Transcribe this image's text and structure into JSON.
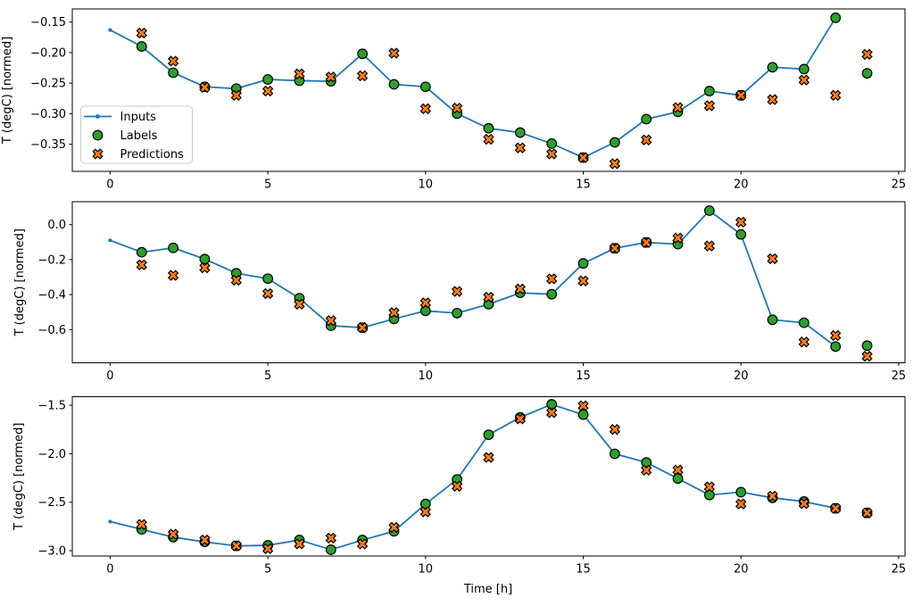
{
  "figure": {
    "xlabel": "Time [h]",
    "ylabel": "T (degC) [normed]",
    "background": "#ffffff",
    "colors": {
      "inputs_line": "#1f77b4",
      "labels_marker": "#2ca02c",
      "predictions_marker": "#ff7f0e",
      "marker_edge": "#000000",
      "axes": "#000000",
      "legend_border": "#cccccc"
    },
    "legend": {
      "entries": [
        {
          "label": "Inputs",
          "marker": "line-with-dot",
          "color": "#1f77b4"
        },
        {
          "label": "Labels",
          "marker": "filled-circle",
          "color": "#2ca02c",
          "edge_color": "#000000"
        },
        {
          "label": "Predictions",
          "marker": "filled-x",
          "color": "#ff7f0e",
          "edge_color": "#000000"
        }
      ]
    }
  },
  "chart_data": [
    {
      "type": "line+scatter",
      "title": "",
      "xlabel": "",
      "ylabel": "T (degC) [normed]",
      "grid": false,
      "legend_visible": true,
      "xlim": [
        -1.2,
        25.2
      ],
      "ylim": [
        -0.3945,
        -0.1285
      ],
      "xtick_values": [
        0,
        5,
        10,
        15,
        20,
        25
      ],
      "xtick_labels": [
        "0",
        "5",
        "10",
        "15",
        "20",
        "25"
      ],
      "ytick_values": [
        -0.15,
        -0.2,
        -0.25,
        -0.3,
        -0.35
      ],
      "ytick_labels": [
        "−0.15",
        "−0.20",
        "−0.25",
        "−0.30",
        "−0.35"
      ],
      "series": [
        {
          "name": "Inputs",
          "type": "line",
          "marker": "dot",
          "color": "#1f77b4",
          "x": [
            0,
            1,
            2,
            3,
            4,
            5,
            6,
            7,
            8,
            9,
            10,
            11,
            12,
            13,
            14,
            15,
            16,
            17,
            18,
            19,
            20,
            21,
            22,
            23
          ],
          "y": [
            -0.163,
            -0.19,
            -0.233,
            -0.256,
            -0.259,
            -0.244,
            -0.246,
            -0.247,
            -0.202,
            -0.252,
            -0.256,
            -0.3,
            -0.324,
            -0.331,
            -0.349,
            -0.372,
            -0.347,
            -0.309,
            -0.297,
            -0.263,
            -0.27,
            -0.224,
            -0.227,
            -0.143
          ]
        },
        {
          "name": "Labels",
          "type": "scatter",
          "marker": "circle",
          "color": "#2ca02c",
          "edge": "#000000",
          "x": [
            1,
            2,
            3,
            4,
            5,
            6,
            7,
            8,
            9,
            10,
            11,
            12,
            13,
            14,
            15,
            16,
            17,
            18,
            19,
            20,
            21,
            22,
            23,
            24
          ],
          "y": [
            -0.19,
            -0.233,
            -0.256,
            -0.259,
            -0.244,
            -0.246,
            -0.247,
            -0.202,
            -0.252,
            -0.256,
            -0.3,
            -0.324,
            -0.331,
            -0.349,
            -0.372,
            -0.347,
            -0.309,
            -0.297,
            -0.263,
            -0.27,
            -0.224,
            -0.227,
            -0.143,
            -0.234
          ]
        },
        {
          "name": "Predictions",
          "type": "scatter",
          "marker": "X",
          "color": "#ff7f0e",
          "edge": "#000000",
          "x": [
            1,
            2,
            3,
            4,
            5,
            6,
            7,
            8,
            9,
            10,
            11,
            12,
            13,
            14,
            15,
            16,
            17,
            18,
            19,
            20,
            21,
            22,
            23,
            24
          ],
          "y": [
            -0.168,
            -0.214,
            -0.257,
            -0.27,
            -0.263,
            -0.235,
            -0.24,
            -0.238,
            -0.201,
            -0.292,
            -0.291,
            -0.342,
            -0.356,
            -0.366,
            -0.372,
            -0.382,
            -0.343,
            -0.29,
            -0.287,
            -0.27,
            -0.277,
            -0.245,
            -0.27,
            -0.203
          ]
        }
      ]
    },
    {
      "type": "line+scatter",
      "title": "",
      "xlabel": "",
      "ylabel": "T (degC) [normed]",
      "grid": false,
      "legend_visible": false,
      "xlim": [
        -1.2,
        25.2
      ],
      "ylim": [
        -0.79,
        0.131
      ],
      "xtick_values": [
        0,
        5,
        10,
        15,
        20,
        25
      ],
      "xtick_labels": [
        "0",
        "5",
        "10",
        "15",
        "20",
        "25"
      ],
      "ytick_values": [
        0.0,
        -0.2,
        -0.4,
        -0.6
      ],
      "ytick_labels": [
        "0.0",
        "−0.2",
        "−0.4",
        "−0.6"
      ],
      "series": [
        {
          "name": "Inputs",
          "type": "line",
          "marker": "dot",
          "color": "#1f77b4",
          "x": [
            0,
            1,
            2,
            3,
            4,
            5,
            6,
            7,
            8,
            9,
            10,
            11,
            12,
            13,
            14,
            15,
            16,
            17,
            18,
            19,
            20,
            21,
            22,
            23
          ],
          "y": [
            -0.09,
            -0.158,
            -0.133,
            -0.197,
            -0.278,
            -0.309,
            -0.421,
            -0.578,
            -0.589,
            -0.539,
            -0.493,
            -0.506,
            -0.455,
            -0.39,
            -0.398,
            -0.222,
            -0.135,
            -0.102,
            -0.112,
            0.08,
            -0.056,
            -0.544,
            -0.561,
            -0.697
          ]
        },
        {
          "name": "Labels",
          "type": "scatter",
          "marker": "circle",
          "color": "#2ca02c",
          "edge": "#000000",
          "x": [
            1,
            2,
            3,
            4,
            5,
            6,
            7,
            8,
            9,
            10,
            11,
            12,
            13,
            14,
            15,
            16,
            17,
            18,
            19,
            20,
            21,
            22,
            23,
            24
          ],
          "y": [
            -0.158,
            -0.133,
            -0.197,
            -0.278,
            -0.309,
            -0.421,
            -0.578,
            -0.589,
            -0.539,
            -0.493,
            -0.506,
            -0.455,
            -0.39,
            -0.398,
            -0.222,
            -0.135,
            -0.102,
            -0.112,
            0.08,
            -0.056,
            -0.544,
            -0.561,
            -0.697,
            -0.692
          ]
        },
        {
          "name": "Predictions",
          "type": "scatter",
          "marker": "X",
          "color": "#ff7f0e",
          "edge": "#000000",
          "x": [
            1,
            2,
            3,
            4,
            5,
            6,
            7,
            8,
            9,
            10,
            11,
            12,
            13,
            14,
            15,
            16,
            17,
            18,
            19,
            20,
            21,
            22,
            23,
            24
          ],
          "y": [
            -0.23,
            -0.29,
            -0.247,
            -0.318,
            -0.394,
            -0.455,
            -0.549,
            -0.589,
            -0.503,
            -0.447,
            -0.382,
            -0.415,
            -0.368,
            -0.31,
            -0.322,
            -0.135,
            -0.102,
            -0.077,
            -0.122,
            0.014,
            -0.195,
            -0.671,
            -0.634,
            -0.753
          ]
        }
      ]
    },
    {
      "type": "line+scatter",
      "title": "",
      "xlabel": "Time [h]",
      "ylabel": "T (degC) [normed]",
      "grid": false,
      "legend_visible": false,
      "xlim": [
        -1.2,
        25.2
      ],
      "ylim": [
        -3.055,
        -1.412
      ],
      "xtick_values": [
        0,
        5,
        10,
        15,
        20,
        25
      ],
      "xtick_labels": [
        "0",
        "5",
        "10",
        "15",
        "20",
        "25"
      ],
      "ytick_values": [
        -1.5,
        -2.0,
        -2.5,
        -3.0
      ],
      "ytick_labels": [
        "−1.5",
        "−2.0",
        "−2.5",
        "−3.0"
      ],
      "series": [
        {
          "name": "Inputs",
          "type": "line",
          "marker": "dot",
          "color": "#1f77b4",
          "x": [
            0,
            1,
            2,
            3,
            4,
            5,
            6,
            7,
            8,
            9,
            10,
            11,
            12,
            13,
            14,
            15,
            16,
            17,
            18,
            19,
            20,
            21,
            22,
            23
          ],
          "y": [
            -2.7,
            -2.78,
            -2.86,
            -2.91,
            -2.95,
            -2.945,
            -2.89,
            -2.99,
            -2.89,
            -2.8,
            -2.518,
            -2.265,
            -1.804,
            -1.625,
            -1.491,
            -1.597,
            -2.001,
            -2.09,
            -2.256,
            -2.426,
            -2.396,
            -2.455,
            -2.493,
            -2.563
          ]
        },
        {
          "name": "Labels",
          "type": "scatter",
          "marker": "circle",
          "color": "#2ca02c",
          "edge": "#000000",
          "x": [
            1,
            2,
            3,
            4,
            5,
            6,
            7,
            8,
            9,
            10,
            11,
            12,
            13,
            14,
            15,
            16,
            17,
            18,
            19,
            20,
            21,
            22,
            23,
            24
          ],
          "y": [
            -2.78,
            -2.86,
            -2.91,
            -2.95,
            -2.945,
            -2.89,
            -2.99,
            -2.89,
            -2.8,
            -2.518,
            -2.265,
            -1.804,
            -1.625,
            -1.491,
            -1.597,
            -2.001,
            -2.09,
            -2.256,
            -2.426,
            -2.396,
            -2.455,
            -2.493,
            -2.563,
            -2.61
          ]
        },
        {
          "name": "Predictions",
          "type": "scatter",
          "marker": "X",
          "color": "#ff7f0e",
          "edge": "#000000",
          "x": [
            1,
            2,
            3,
            4,
            5,
            6,
            7,
            8,
            9,
            10,
            11,
            12,
            13,
            14,
            15,
            16,
            17,
            18,
            19,
            20,
            21,
            22,
            23,
            24
          ],
          "y": [
            -2.73,
            -2.83,
            -2.89,
            -2.95,
            -2.98,
            -2.93,
            -2.87,
            -2.93,
            -2.76,
            -2.6,
            -2.335,
            -2.038,
            -1.64,
            -1.576,
            -1.506,
            -1.75,
            -2.17,
            -2.168,
            -2.342,
            -2.518,
            -2.438,
            -2.515,
            -2.563,
            -2.61
          ]
        }
      ]
    }
  ]
}
